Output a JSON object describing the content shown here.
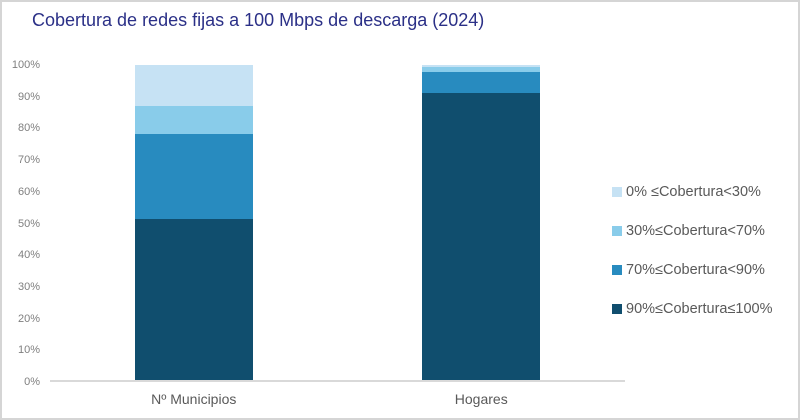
{
  "chart_data": {
    "type": "bar",
    "subtype": "stacked-percent",
    "title": "Cobertura de redes fijas a 100 Mbps de descarga (2024)",
    "categories": [
      "Nº Municipios",
      "Hogares"
    ],
    "series": [
      {
        "name": "0% ≤Cobertura<30%",
        "color": "#C6E2F4",
        "values": [
          13,
          0.7
        ]
      },
      {
        "name": "30%≤Cobertura<70%",
        "color": "#89CCEA",
        "values": [
          9,
          1.5
        ]
      },
      {
        "name": "70%≤Cobertura<90%",
        "color": "#288BBF",
        "values": [
          27,
          6.8
        ]
      },
      {
        "name": "90%≤Cobertura≤100%",
        "color": "#104E6E",
        "values": [
          51,
          91
        ]
      }
    ],
    "ylim": [
      0,
      100
    ],
    "yticks": [
      "0%",
      "10%",
      "20%",
      "30%",
      "40%",
      "50%",
      "60%",
      "70%",
      "80%",
      "90%",
      "100%"
    ],
    "xlabel": "",
    "ylabel": "",
    "grid": false,
    "legend_position": "right",
    "colors": {
      "title": "#2B3087",
      "axis_line": "#D9D9D9",
      "ytick_text": "#7F7F7F",
      "xtick_text": "#595959",
      "legend_text": "#595959",
      "frame_border": "#D5D5D5",
      "background": "#FFFFFF"
    }
  }
}
